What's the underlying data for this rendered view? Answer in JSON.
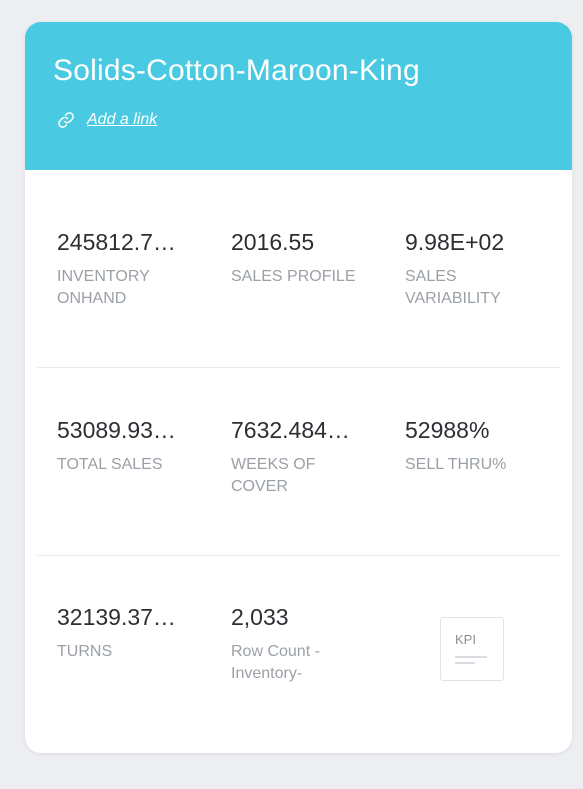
{
  "card": {
    "title": "Solids-Cotton-Maroon-King",
    "link_label": "Add a link",
    "link_icon": "link-icon",
    "header_color": "#4acae2"
  },
  "metrics": [
    {
      "value": "245812.7…",
      "label": "INVENTORY ONHAND"
    },
    {
      "value": "2016.55",
      "label": "SALES PROFILE"
    },
    {
      "value": "9.98E+02",
      "label": "SALES VARIABILITY"
    },
    {
      "value": "53089.93…",
      "label": "TOTAL SALES"
    },
    {
      "value": "7632.484…",
      "label": "WEEKS OF COVER"
    },
    {
      "value": "52988%",
      "label": "SELL THRU%"
    },
    {
      "value": "32139.37…",
      "label": "TURNS"
    },
    {
      "value": "2,033",
      "label": "Row Count - Inventory-"
    }
  ],
  "kpi_thumbnail": {
    "label": "KPI",
    "icon": "kpi-icon"
  }
}
